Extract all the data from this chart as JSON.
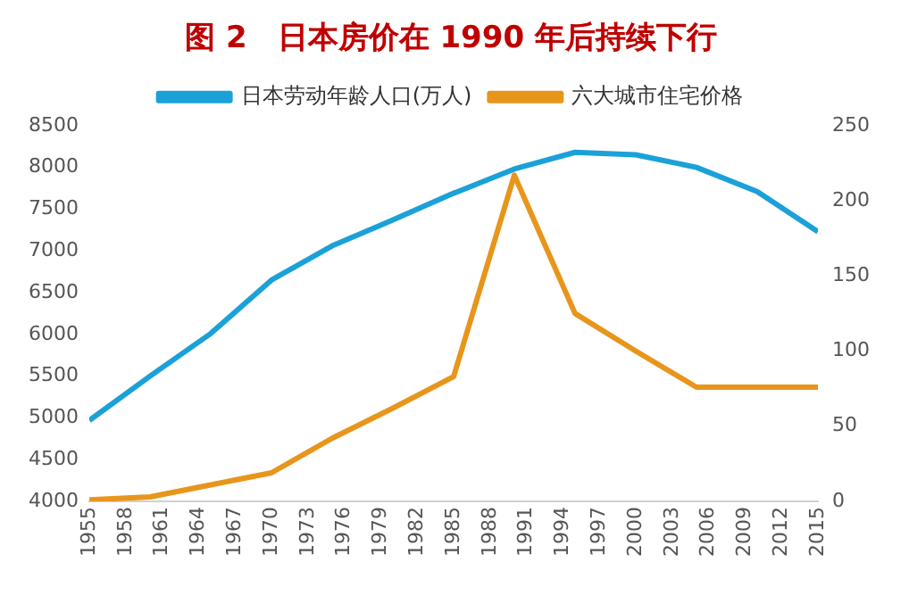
{
  "chart_data": {
    "type": "line",
    "title": "图 2　日本房价在 1990 年后持续下行",
    "x": [
      1955,
      1960,
      1965,
      1970,
      1975,
      1980,
      1985,
      1990,
      1995,
      2000,
      2005,
      2010,
      2015
    ],
    "series": [
      {
        "name": "日本劳动年龄人口(万人)",
        "color": "#1ba1d8",
        "values": [
          4970,
          5500,
          6010,
          6650,
          7060,
          7370,
          7690,
          7980,
          8180,
          8150,
          8000,
          7710,
          7230
        ]
      },
      {
        "name": "六大城市住宅价格",
        "color": "#e8951c",
        "axis": "y2",
        "values": [
          1,
          3,
          11,
          19,
          42,
          62,
          83,
          217,
          125,
          100,
          76,
          76,
          76
        ]
      }
    ],
    "xlim": [
      1955,
      2015
    ],
    "xticks": [
      1955,
      1958,
      1961,
      1964,
      1967,
      1970,
      1973,
      1976,
      1979,
      1982,
      1985,
      1988,
      1991,
      1994,
      1997,
      2000,
      2003,
      2006,
      2009,
      2012,
      2015
    ],
    "ylim": [
      4000,
      8500
    ],
    "yticks": [
      4000,
      4500,
      5000,
      5500,
      6000,
      6500,
      7000,
      7500,
      8000,
      8500
    ],
    "y2lim": [
      0,
      250
    ],
    "y2ticks": [
      0,
      50,
      100,
      150,
      200,
      250
    ],
    "grid": false,
    "legend": "top",
    "marker": "none",
    "line_style": "solid"
  }
}
